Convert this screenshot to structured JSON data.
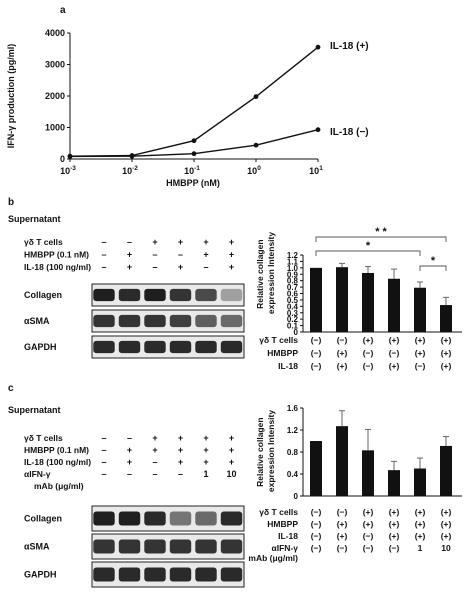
{
  "chart_data": [
    {
      "panel": "a",
      "type": "line",
      "xscale": "log",
      "x": [
        0.001,
        0.01,
        0.1,
        1,
        10
      ],
      "x_tick_labels": [
        "10",
        "10",
        "10",
        "10",
        "10"
      ],
      "x_tick_exponents": [
        "-3",
        "-2",
        "-1",
        "0",
        "1"
      ],
      "xlabel": "HMBPP (nM)",
      "ylabel": "IFN-γ production (pg/ml)",
      "ylim": [
        0,
        4000
      ],
      "y_ticks": [
        "0",
        "1000",
        "2000",
        "3000",
        "4000"
      ],
      "series": [
        {
          "name": "IL-18 (+)",
          "values": [
            90,
            110,
            580,
            1980,
            3550
          ]
        },
        {
          "name": "IL-18 (−)",
          "values": [
            80,
            90,
            170,
            440,
            930
          ]
        }
      ]
    },
    {
      "panel": "b",
      "type": "bar",
      "ylabel": "Relative collagen expression Intensity",
      "ylim": [
        0,
        1.2
      ],
      "y_ticks": [
        "0",
        "0.1",
        "0.2",
        "0.3",
        "0.4",
        "0.5",
        "0.6",
        "0.7",
        "0.8",
        "0.9",
        "1.0",
        "1.1",
        "1.2"
      ],
      "values": [
        1.0,
        1.01,
        0.92,
        0.83,
        0.69,
        0.42
      ],
      "errors": [
        0.0,
        0.06,
        0.1,
        0.15,
        0.09,
        0.12
      ],
      "conditions": [
        {
          "name": "γδ T cells",
          "values": [
            "(−)",
            "(−)",
            "(+)",
            "(+)",
            "(+)",
            "(+)"
          ]
        },
        {
          "name": "HMBPP",
          "values": [
            "(−)",
            "(+)",
            "(−)",
            "(−)",
            "(+)",
            "(+)"
          ]
        },
        {
          "name": "IL-18",
          "values": [
            "(−)",
            "(+)",
            "(−)",
            "(+)",
            "(−)",
            "(+)"
          ]
        }
      ],
      "significance": [
        {
          "from": 1,
          "to": 6,
          "label": "* *"
        },
        {
          "from": 1,
          "to": 5,
          "label": "*"
        },
        {
          "from": 5,
          "to": 6,
          "label": "*"
        }
      ]
    },
    {
      "panel": "c",
      "type": "bar",
      "ylabel": "Relative collagen expression Intensity",
      "ylim": [
        0,
        1.6
      ],
      "y_ticks": [
        "0",
        "0.4",
        "0.8",
        "1.2",
        "1.6"
      ],
      "values": [
        1.0,
        1.27,
        0.83,
        0.47,
        0.5,
        0.91
      ],
      "errors": [
        0.0,
        0.28,
        0.38,
        0.16,
        0.19,
        0.17
      ],
      "conditions": [
        {
          "name": "γδ T cells",
          "values": [
            "(−)",
            "(−)",
            "(+)",
            "(+)",
            "(+)",
            "(+)"
          ]
        },
        {
          "name": "HMBPP",
          "values": [
            "(−)",
            "(+)",
            "(+)",
            "(+)",
            "(+)",
            "(+)"
          ]
        },
        {
          "name": "IL-18",
          "values": [
            "(−)",
            "(+)",
            "(−)",
            "(+)",
            "(+)",
            "(+)"
          ]
        },
        {
          "name": "αIFN-γ",
          "values": [
            "(−)",
            "(−)",
            "(−)",
            "(−)",
            "1",
            "10"
          ]
        }
      ],
      "condition_last_line": "mAb (μg/ml)"
    }
  ],
  "panel_labels": {
    "a": "a",
    "b": "b",
    "c": "c"
  },
  "blot_b": {
    "title": "Supernatant",
    "rows": [
      {
        "name": "γδ T cells",
        "values": [
          "–",
          "–",
          "+",
          "+",
          "+",
          "+"
        ]
      },
      {
        "name": "HMBPP (0.1 nM)",
        "values": [
          "–",
          "+",
          "–",
          "–",
          "+",
          "+"
        ]
      },
      {
        "name": "IL-18 (100 ng/ml)",
        "values": [
          "–",
          "+",
          "–",
          "+",
          "–",
          "+"
        ]
      }
    ],
    "bands": [
      {
        "name": "Collagen",
        "intensity": [
          0.95,
          0.9,
          0.95,
          0.85,
          0.75,
          0.35
        ]
      },
      {
        "name": "αSMA",
        "intensity": [
          0.85,
          0.85,
          0.85,
          0.8,
          0.65,
          0.6
        ]
      },
      {
        "name": "GAPDH",
        "intensity": [
          0.9,
          0.9,
          0.9,
          0.9,
          0.9,
          0.9
        ]
      }
    ]
  },
  "blot_c": {
    "title": "Supernatant",
    "rows": [
      {
        "name": "γδ T cells",
        "values": [
          "–",
          "–",
          "+",
          "+",
          "+",
          "+"
        ]
      },
      {
        "name": "HMBPP (0.1 nM)",
        "values": [
          "–",
          "+",
          "+",
          "+",
          "+",
          "+"
        ]
      },
      {
        "name": "IL-18 (100 ng/ml)",
        "values": [
          "–",
          "+",
          "–",
          "+",
          "+",
          "+"
        ]
      },
      {
        "name": "αIFN-γ",
        "values": [
          "–",
          "–",
          "–",
          "–",
          "1",
          "10"
        ]
      }
    ],
    "row_extra_label": "mAb (μg/ml)",
    "bands": [
      {
        "name": "Collagen",
        "intensity": [
          0.95,
          0.95,
          0.9,
          0.55,
          0.6,
          0.9
        ]
      },
      {
        "name": "αSMA",
        "intensity": [
          0.85,
          0.85,
          0.85,
          0.85,
          0.85,
          0.85
        ]
      },
      {
        "name": "GAPDH",
        "intensity": [
          0.9,
          0.9,
          0.9,
          0.9,
          0.9,
          0.9
        ]
      }
    ]
  }
}
